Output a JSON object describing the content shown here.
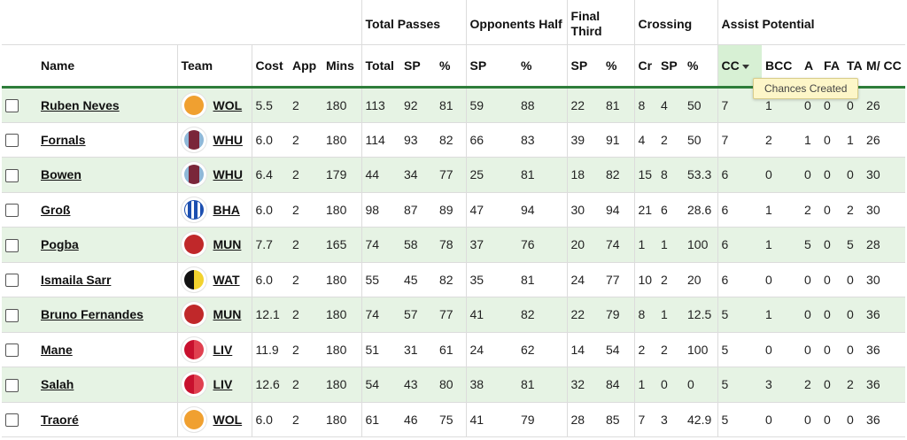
{
  "groups": {
    "total_passes": "Total Passes",
    "opponents_half": "Opponents Half",
    "final_third": "Final Third",
    "crossing": "Crossing",
    "assist_potential": "Assist Potential"
  },
  "columns": {
    "name": "Name",
    "team": "Team",
    "cost": "Cost",
    "app": "App",
    "mins": "Mins",
    "tp_total": "Total",
    "tp_sp": "SP",
    "tp_pct": "%",
    "oh_sp": "SP",
    "oh_pct": "%",
    "ft_sp": "SP",
    "ft_pct": "%",
    "cr_cr": "Cr",
    "cr_sp": "SP",
    "cr_pct": "%",
    "cc": "CC",
    "bcc": "BCC",
    "a": "A",
    "fa": "FA",
    "ta": "TA",
    "mcc": "M/ CC"
  },
  "tooltip": "Chances Created",
  "rows": [
    {
      "name": "Ruben Neves",
      "team": "WOL",
      "kit": "wol",
      "cost": "5.5",
      "app": "2",
      "mins": "180",
      "tp_total": "113",
      "tp_sp": "92",
      "tp_pct": "81",
      "oh_sp": "59",
      "oh_pct": "88",
      "ft_sp": "22",
      "ft_pct": "81",
      "cr_cr": "8",
      "cr_sp": "4",
      "cr_pct": "50",
      "cc": "7",
      "bcc": "1",
      "a": "0",
      "fa": "0",
      "ta": "0",
      "mcc": "26"
    },
    {
      "name": "Fornals",
      "team": "WHU",
      "kit": "whu",
      "cost": "6.0",
      "app": "2",
      "mins": "180",
      "tp_total": "114",
      "tp_sp": "93",
      "tp_pct": "82",
      "oh_sp": "66",
      "oh_pct": "83",
      "ft_sp": "39",
      "ft_pct": "91",
      "cr_cr": "4",
      "cr_sp": "2",
      "cr_pct": "50",
      "cc": "7",
      "bcc": "2",
      "a": "1",
      "fa": "0",
      "ta": "1",
      "mcc": "26"
    },
    {
      "name": "Bowen",
      "team": "WHU",
      "kit": "whu",
      "cost": "6.4",
      "app": "2",
      "mins": "179",
      "tp_total": "44",
      "tp_sp": "34",
      "tp_pct": "77",
      "oh_sp": "25",
      "oh_pct": "81",
      "ft_sp": "18",
      "ft_pct": "82",
      "cr_cr": "15",
      "cr_sp": "8",
      "cr_pct": "53.3",
      "cc": "6",
      "bcc": "0",
      "a": "0",
      "fa": "0",
      "ta": "0",
      "mcc": "30"
    },
    {
      "name": "Groß",
      "team": "BHA",
      "kit": "bha",
      "cost": "6.0",
      "app": "2",
      "mins": "180",
      "tp_total": "98",
      "tp_sp": "87",
      "tp_pct": "89",
      "oh_sp": "47",
      "oh_pct": "94",
      "ft_sp": "30",
      "ft_pct": "94",
      "cr_cr": "21",
      "cr_sp": "6",
      "cr_pct": "28.6",
      "cc": "6",
      "bcc": "1",
      "a": "2",
      "fa": "0",
      "ta": "2",
      "mcc": "30"
    },
    {
      "name": "Pogba",
      "team": "MUN",
      "kit": "mun",
      "cost": "7.7",
      "app": "2",
      "mins": "165",
      "tp_total": "74",
      "tp_sp": "58",
      "tp_pct": "78",
      "oh_sp": "37",
      "oh_pct": "76",
      "ft_sp": "20",
      "ft_pct": "74",
      "cr_cr": "1",
      "cr_sp": "1",
      "cr_pct": "100",
      "cc": "6",
      "bcc": "1",
      "a": "5",
      "fa": "0",
      "ta": "5",
      "mcc": "28"
    },
    {
      "name": "Ismaila Sarr",
      "team": "WAT",
      "kit": "wat",
      "cost": "6.0",
      "app": "2",
      "mins": "180",
      "tp_total": "55",
      "tp_sp": "45",
      "tp_pct": "82",
      "oh_sp": "35",
      "oh_pct": "81",
      "ft_sp": "24",
      "ft_pct": "77",
      "cr_cr": "10",
      "cr_sp": "2",
      "cr_pct": "20",
      "cc": "6",
      "bcc": "0",
      "a": "0",
      "fa": "0",
      "ta": "0",
      "mcc": "30"
    },
    {
      "name": "Bruno Fernandes",
      "team": "MUN",
      "kit": "mun",
      "cost": "12.1",
      "app": "2",
      "mins": "180",
      "tp_total": "74",
      "tp_sp": "57",
      "tp_pct": "77",
      "oh_sp": "41",
      "oh_pct": "82",
      "ft_sp": "22",
      "ft_pct": "79",
      "cr_cr": "8",
      "cr_sp": "1",
      "cr_pct": "12.5",
      "cc": "5",
      "bcc": "1",
      "a": "0",
      "fa": "0",
      "ta": "0",
      "mcc": "36"
    },
    {
      "name": "Mane",
      "team": "LIV",
      "kit": "liv",
      "cost": "11.9",
      "app": "2",
      "mins": "180",
      "tp_total": "51",
      "tp_sp": "31",
      "tp_pct": "61",
      "oh_sp": "24",
      "oh_pct": "62",
      "ft_sp": "14",
      "ft_pct": "54",
      "cr_cr": "2",
      "cr_sp": "2",
      "cr_pct": "100",
      "cc": "5",
      "bcc": "0",
      "a": "0",
      "fa": "0",
      "ta": "0",
      "mcc": "36"
    },
    {
      "name": "Salah",
      "team": "LIV",
      "kit": "liv",
      "cost": "12.6",
      "app": "2",
      "mins": "180",
      "tp_total": "54",
      "tp_sp": "43",
      "tp_pct": "80",
      "oh_sp": "38",
      "oh_pct": "81",
      "ft_sp": "32",
      "ft_pct": "84",
      "cr_cr": "1",
      "cr_sp": "0",
      "cr_pct": "0",
      "cc": "5",
      "bcc": "3",
      "a": "2",
      "fa": "0",
      "ta": "2",
      "mcc": "36"
    },
    {
      "name": "Traoré",
      "team": "WOL",
      "kit": "wol",
      "cost": "6.0",
      "app": "2",
      "mins": "180",
      "tp_total": "61",
      "tp_sp": "46",
      "tp_pct": "75",
      "oh_sp": "41",
      "oh_pct": "79",
      "ft_sp": "28",
      "ft_pct": "85",
      "cr_cr": "7",
      "cr_sp": "3",
      "cr_pct": "42.9",
      "cc": "5",
      "bcc": "0",
      "a": "0",
      "fa": "0",
      "ta": "0",
      "mcc": "36"
    }
  ]
}
